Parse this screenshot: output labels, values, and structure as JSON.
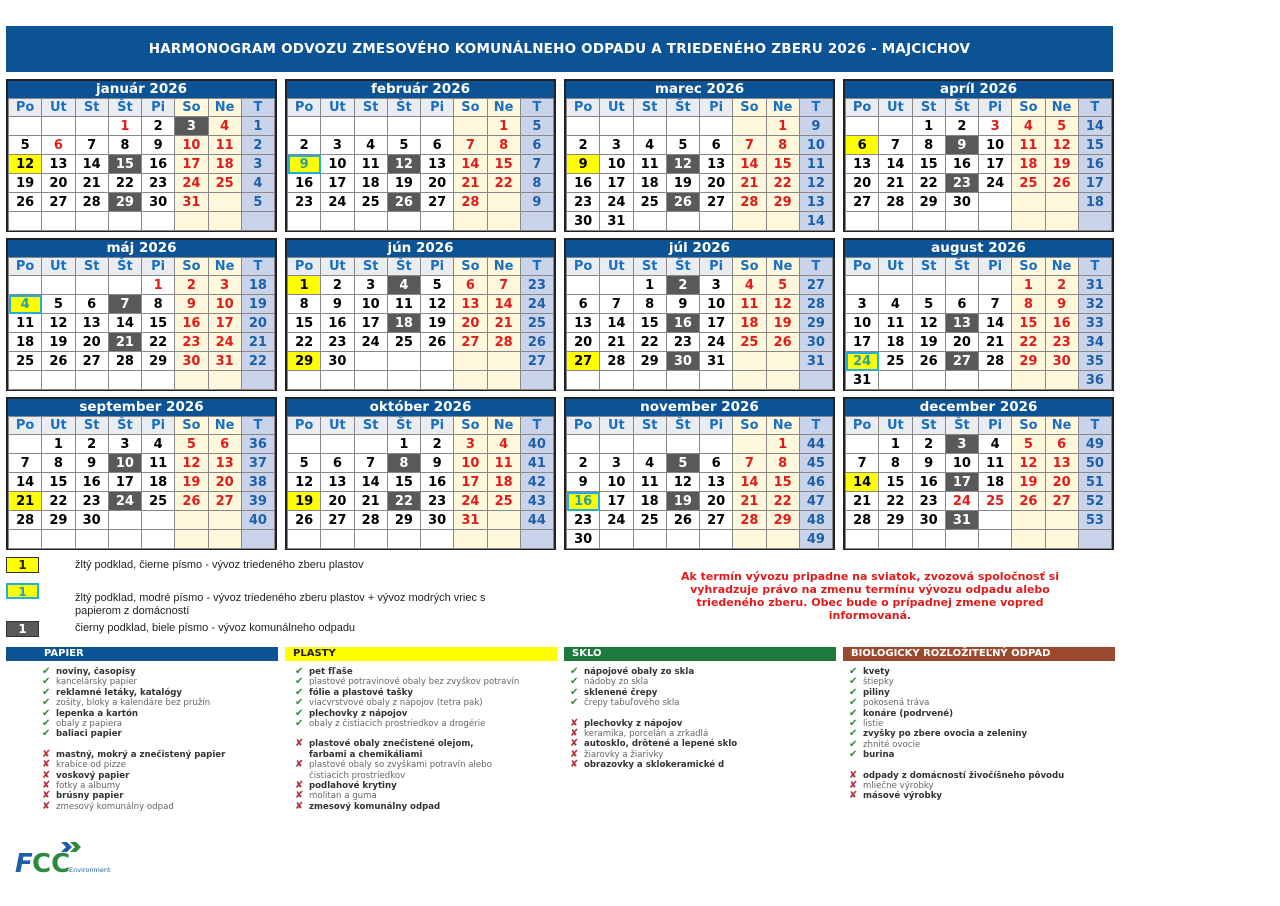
{
  "title": "HARMONOGRAM ODVOZU ZMESOVÉHO KOMUNÁLNEHO ODPADU A TRIEDENÉHO ZBERU  2026 - MAJCICHOV",
  "year": 2026,
  "weekday_headers": [
    "Po",
    "Ut",
    "St",
    "Št",
    "Pi",
    "So",
    "Ne",
    "T"
  ],
  "colors": {
    "banner": "#0b5394",
    "plastics": "#ffff00",
    "paper_border": "#22aee0",
    "communal": "#595959",
    "holiday": "#e01b1b",
    "papier": "#0b5394",
    "sklo": "#1e7a3c",
    "bio": "#9a4a2e"
  },
  "months": [
    {
      "name": "január 2026",
      "weeks": [
        1,
        2,
        3,
        4,
        5,
        ""
      ],
      "holidays": [
        1,
        6
      ],
      "yellow": [
        12
      ],
      "yellow_blue": [],
      "dark": [
        3,
        15,
        29
      ]
    },
    {
      "name": "február 2026",
      "weeks": [
        5,
        6,
        7,
        8,
        9,
        ""
      ],
      "holidays": [],
      "yellow": [],
      "yellow_blue": [
        9
      ],
      "dark": [
        12,
        26
      ]
    },
    {
      "name": "marec 2026",
      "weeks": [
        9,
        10,
        11,
        12,
        13,
        14
      ],
      "holidays": [],
      "yellow": [
        9
      ],
      "yellow_blue": [],
      "dark": [
        12,
        26
      ]
    },
    {
      "name": "apríl 2026",
      "weeks": [
        14,
        15,
        16,
        17,
        18,
        ""
      ],
      "holidays": [
        3
      ],
      "yellow": [
        6
      ],
      "yellow_blue": [],
      "dark": [
        9,
        23
      ]
    },
    {
      "name": "máj 2026",
      "weeks": [
        18,
        19,
        20,
        21,
        22,
        ""
      ],
      "holidays": [
        1
      ],
      "yellow": [],
      "yellow_blue": [
        4
      ],
      "dark": [
        7,
        21
      ]
    },
    {
      "name": "jún 2026",
      "weeks": [
        23,
        24,
        25,
        26,
        27,
        ""
      ],
      "holidays": [],
      "yellow": [
        1,
        29
      ],
      "yellow_blue": [],
      "dark": [
        4,
        18
      ]
    },
    {
      "name": "júl 2026",
      "weeks": [
        27,
        28,
        29,
        30,
        31,
        ""
      ],
      "holidays": [],
      "yellow": [
        27
      ],
      "yellow_blue": [],
      "dark": [
        2,
        16,
        30
      ]
    },
    {
      "name": "august 2026",
      "weeks": [
        31,
        32,
        33,
        34,
        35,
        36
      ],
      "holidays": [],
      "yellow": [],
      "yellow_blue": [
        24
      ],
      "dark": [
        13,
        27
      ]
    },
    {
      "name": "september 2026",
      "weeks": [
        36,
        37,
        38,
        39,
        40,
        ""
      ],
      "holidays": [],
      "yellow": [
        21
      ],
      "yellow_blue": [],
      "dark": [
        10,
        24
      ]
    },
    {
      "name": "október 2026",
      "weeks": [
        40,
        41,
        42,
        43,
        44,
        ""
      ],
      "holidays": [],
      "yellow": [
        19
      ],
      "yellow_blue": [],
      "dark": [
        8,
        22
      ]
    },
    {
      "name": "november 2026",
      "weeks": [
        44,
        45,
        46,
        47,
        48,
        49
      ],
      "holidays": [],
      "yellow": [],
      "yellow_blue": [
        16
      ],
      "dark": [
        5,
        19
      ]
    },
    {
      "name": "december 2026",
      "weeks": [
        49,
        50,
        51,
        52,
        53,
        ""
      ],
      "holidays": [
        24,
        25
      ],
      "yellow": [
        14
      ],
      "yellow_blue": [],
      "dark": [
        3,
        17,
        31
      ]
    }
  ],
  "legend": [
    {
      "sample": "1",
      "text": "žltý podklad, čierne písmo - vývoz triedeného zberu plastov"
    },
    {
      "sample": "1",
      "text": "žltý podklad, modré písmo - vývoz triedeného zberu plastov + vývoz modrých vriec s papierom z domácností"
    },
    {
      "sample": "1",
      "text": "čierny podklad, biele písmo - vývoz komunálneho odpadu"
    }
  ],
  "notice": "Ak termín vývozu pripadne na sviatok, zvozová spoločnosť si vyhradzuje právo na zmenu termínu vývozu odpadu alebo triedeného zberu.  Obec bude o prípadnej zmene vopred informovaná.",
  "categories": [
    {
      "title": "PAPIER",
      "yes": [
        [
          "noviny, časopisy",
          1
        ],
        [
          "kancelársky papier",
          0
        ],
        [
          "reklamné letáky, katalógy",
          1
        ],
        [
          "zošity, bloky a kalendáre bez pružín",
          0
        ],
        [
          "lepenka a kartón",
          1
        ],
        [
          "obaly z papiera",
          0
        ],
        [
          "baliaci papier",
          1
        ]
      ],
      "no": [
        [
          "mastný, mokrý  a znečistený papier",
          1
        ],
        [
          "krabice od pizze",
          0
        ],
        [
          "voskový papier",
          1
        ],
        [
          "fotky a albumy",
          0
        ],
        [
          "brúsny papier",
          1
        ],
        [
          "zmesový komunálny odpad",
          0
        ]
      ]
    },
    {
      "title": "PLASTY",
      "yes": [
        [
          "pet fľaše",
          1
        ],
        [
          "plastové potravinové obaly bez zvyškov potravín",
          0
        ],
        [
          "fólie a plastové tašky",
          1
        ],
        [
          "viacvrstvové obaly z nápojov (tetra pak)",
          0
        ],
        [
          "plechovky z nápojov",
          1
        ],
        [
          "obaly z čistiacich prostriedkov a drogérie",
          0
        ]
      ],
      "no": [
        [
          "plastové obaly znečistené olejom, farbami a chemikáliami",
          1
        ],
        [
          "plastové obaly so zvyškami potravín alebo čistiacich prostriedkov",
          0
        ],
        [
          "podlahové krytiny",
          1
        ],
        [
          "molitan a guma",
          0
        ],
        [
          "zmesový komunálny odpad",
          1
        ]
      ]
    },
    {
      "title": "SKLO",
      "yes": [
        [
          "nápojové obaly zo skla",
          1
        ],
        [
          "nádoby zo skla",
          0
        ],
        [
          "sklenené črepy",
          1
        ],
        [
          "črepy tabuľového skla",
          0
        ]
      ],
      "no": [
        [
          "plechovky z nápojov",
          1
        ],
        [
          "keramika, porcelán a zrkadlá",
          0
        ],
        [
          "autosklo, drôtené a lepené sklo",
          1
        ],
        [
          "žiarovky a žiarivky",
          0
        ],
        [
          "obrazovky a sklokeramické d",
          1
        ]
      ]
    },
    {
      "title": "BIOLOGICKY ROZLOŽITEĽNÝ ODPAD",
      "yes": [
        [
          "kvety",
          1
        ],
        [
          "štiepky",
          0
        ],
        [
          "piliny",
          1
        ],
        [
          "pokosená tráva",
          0
        ],
        [
          "konáre (podrvené)",
          1
        ],
        [
          "listie",
          0
        ],
        [
          "zvyšky po zbere ovocia a zeleniny",
          1
        ],
        [
          "zhnité ovocie",
          0
        ],
        [
          "burina",
          1
        ]
      ],
      "no": [
        [
          "odpady z domácností živočíšneho pôvodu",
          1
        ],
        [
          "mliečne výrobky",
          0
        ],
        [
          "másové výrobky",
          1
        ]
      ]
    }
  ],
  "logo": {
    "text": "FCC",
    "subtitle": "Environment"
  }
}
